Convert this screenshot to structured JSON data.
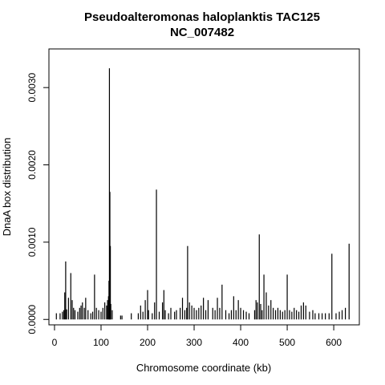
{
  "chart_data": {
    "type": "bar",
    "title": "Pseudoalteromonas haloplanktis TAC125",
    "subtitle": "NC_007482",
    "xlabel": "Chromosome coordinate (kb)",
    "ylabel": "DnaA box distribution",
    "xlim": [
      -12,
      655
    ],
    "ylim": [
      -7e-05,
      0.0035
    ],
    "x_ticks": [
      "0",
      "100",
      "200",
      "300",
      "400",
      "500",
      "600"
    ],
    "x_tick_values": [
      0,
      100,
      200,
      300,
      400,
      500,
      600
    ],
    "y_ticks": [
      "0.0000",
      "0.0010",
      "0.0020",
      "0.0030"
    ],
    "y_tick_values": [
      0,
      0.001,
      0.002,
      0.003
    ],
    "grid": false,
    "legend": "none",
    "bar_color": "#000000",
    "x": [
      4,
      12,
      17,
      20,
      22,
      24,
      26,
      30,
      35,
      38,
      41,
      44,
      50,
      54,
      57,
      60,
      64,
      67,
      72,
      78,
      82,
      86,
      90,
      95,
      100,
      104,
      108,
      112,
      114,
      116,
      117,
      118,
      119,
      120,
      121,
      124,
      142,
      145,
      165,
      180,
      185,
      190,
      195,
      200,
      202,
      210,
      215,
      219,
      225,
      232,
      235,
      238,
      245,
      250,
      258,
      262,
      270,
      275,
      280,
      284,
      286,
      290,
      295,
      300,
      305,
      310,
      315,
      320,
      325,
      330,
      340,
      345,
      350,
      355,
      360,
      368,
      375,
      380,
      385,
      390,
      395,
      400,
      406,
      412,
      418,
      430,
      433,
      436,
      440,
      443,
      446,
      450,
      455,
      460,
      465,
      470,
      475,
      480,
      485,
      490,
      495,
      500,
      505,
      510,
      515,
      520,
      525,
      530,
      535,
      540,
      548,
      555,
      560,
      568,
      575,
      582,
      590,
      596,
      605,
      612,
      618,
      625,
      633
    ],
    "values": [
      8e-05,
      8e-05,
      0.0001,
      0.00012,
      0.00035,
      0.00075,
      0.00013,
      0.00028,
      0.0006,
      0.00025,
      0.00015,
      0.00012,
      0.0001,
      0.00015,
      0.00018,
      0.00022,
      0.00015,
      0.00028,
      0.00012,
      8e-05,
      0.0001,
      0.00058,
      0.00015,
      0.00012,
      0.0001,
      0.00015,
      0.00022,
      0.00018,
      0.00025,
      0.0003,
      0.0005,
      0.00325,
      0.00165,
      0.00095,
      0.0002,
      0.00012,
      5e-05,
      5e-05,
      8e-05,
      8e-05,
      0.00018,
      0.0001,
      0.00025,
      0.00038,
      0.00012,
      8e-05,
      0.00022,
      0.00168,
      0.0001,
      0.00022,
      0.00038,
      0.00012,
      8e-05,
      0.00015,
      0.0001,
      0.00012,
      0.00015,
      0.00028,
      0.00012,
      0.00015,
      0.00095,
      0.00022,
      0.00018,
      0.00015,
      0.00012,
      0.00015,
      0.00018,
      0.00028,
      0.00012,
      0.00025,
      0.00015,
      0.00012,
      0.00028,
      0.00015,
      0.00045,
      0.00012,
      8e-05,
      0.00012,
      0.0003,
      0.00012,
      0.00025,
      0.00015,
      0.00012,
      0.0001,
      8e-05,
      0.00012,
      0.00025,
      0.00022,
      0.0011,
      0.0002,
      0.00012,
      0.00058,
      0.00035,
      0.00018,
      0.00025,
      0.00015,
      0.00012,
      0.00015,
      0.00012,
      0.0001,
      0.00012,
      0.00058,
      0.00012,
      0.0001,
      0.00015,
      0.00012,
      0.0001,
      0.00018,
      0.00022,
      0.00018,
      0.0001,
      0.00012,
      8e-05,
      8e-05,
      8e-05,
      8e-05,
      8e-05,
      0.00085,
      8e-05,
      0.0001,
      0.00012,
      0.00015,
      0.00098
    ]
  }
}
